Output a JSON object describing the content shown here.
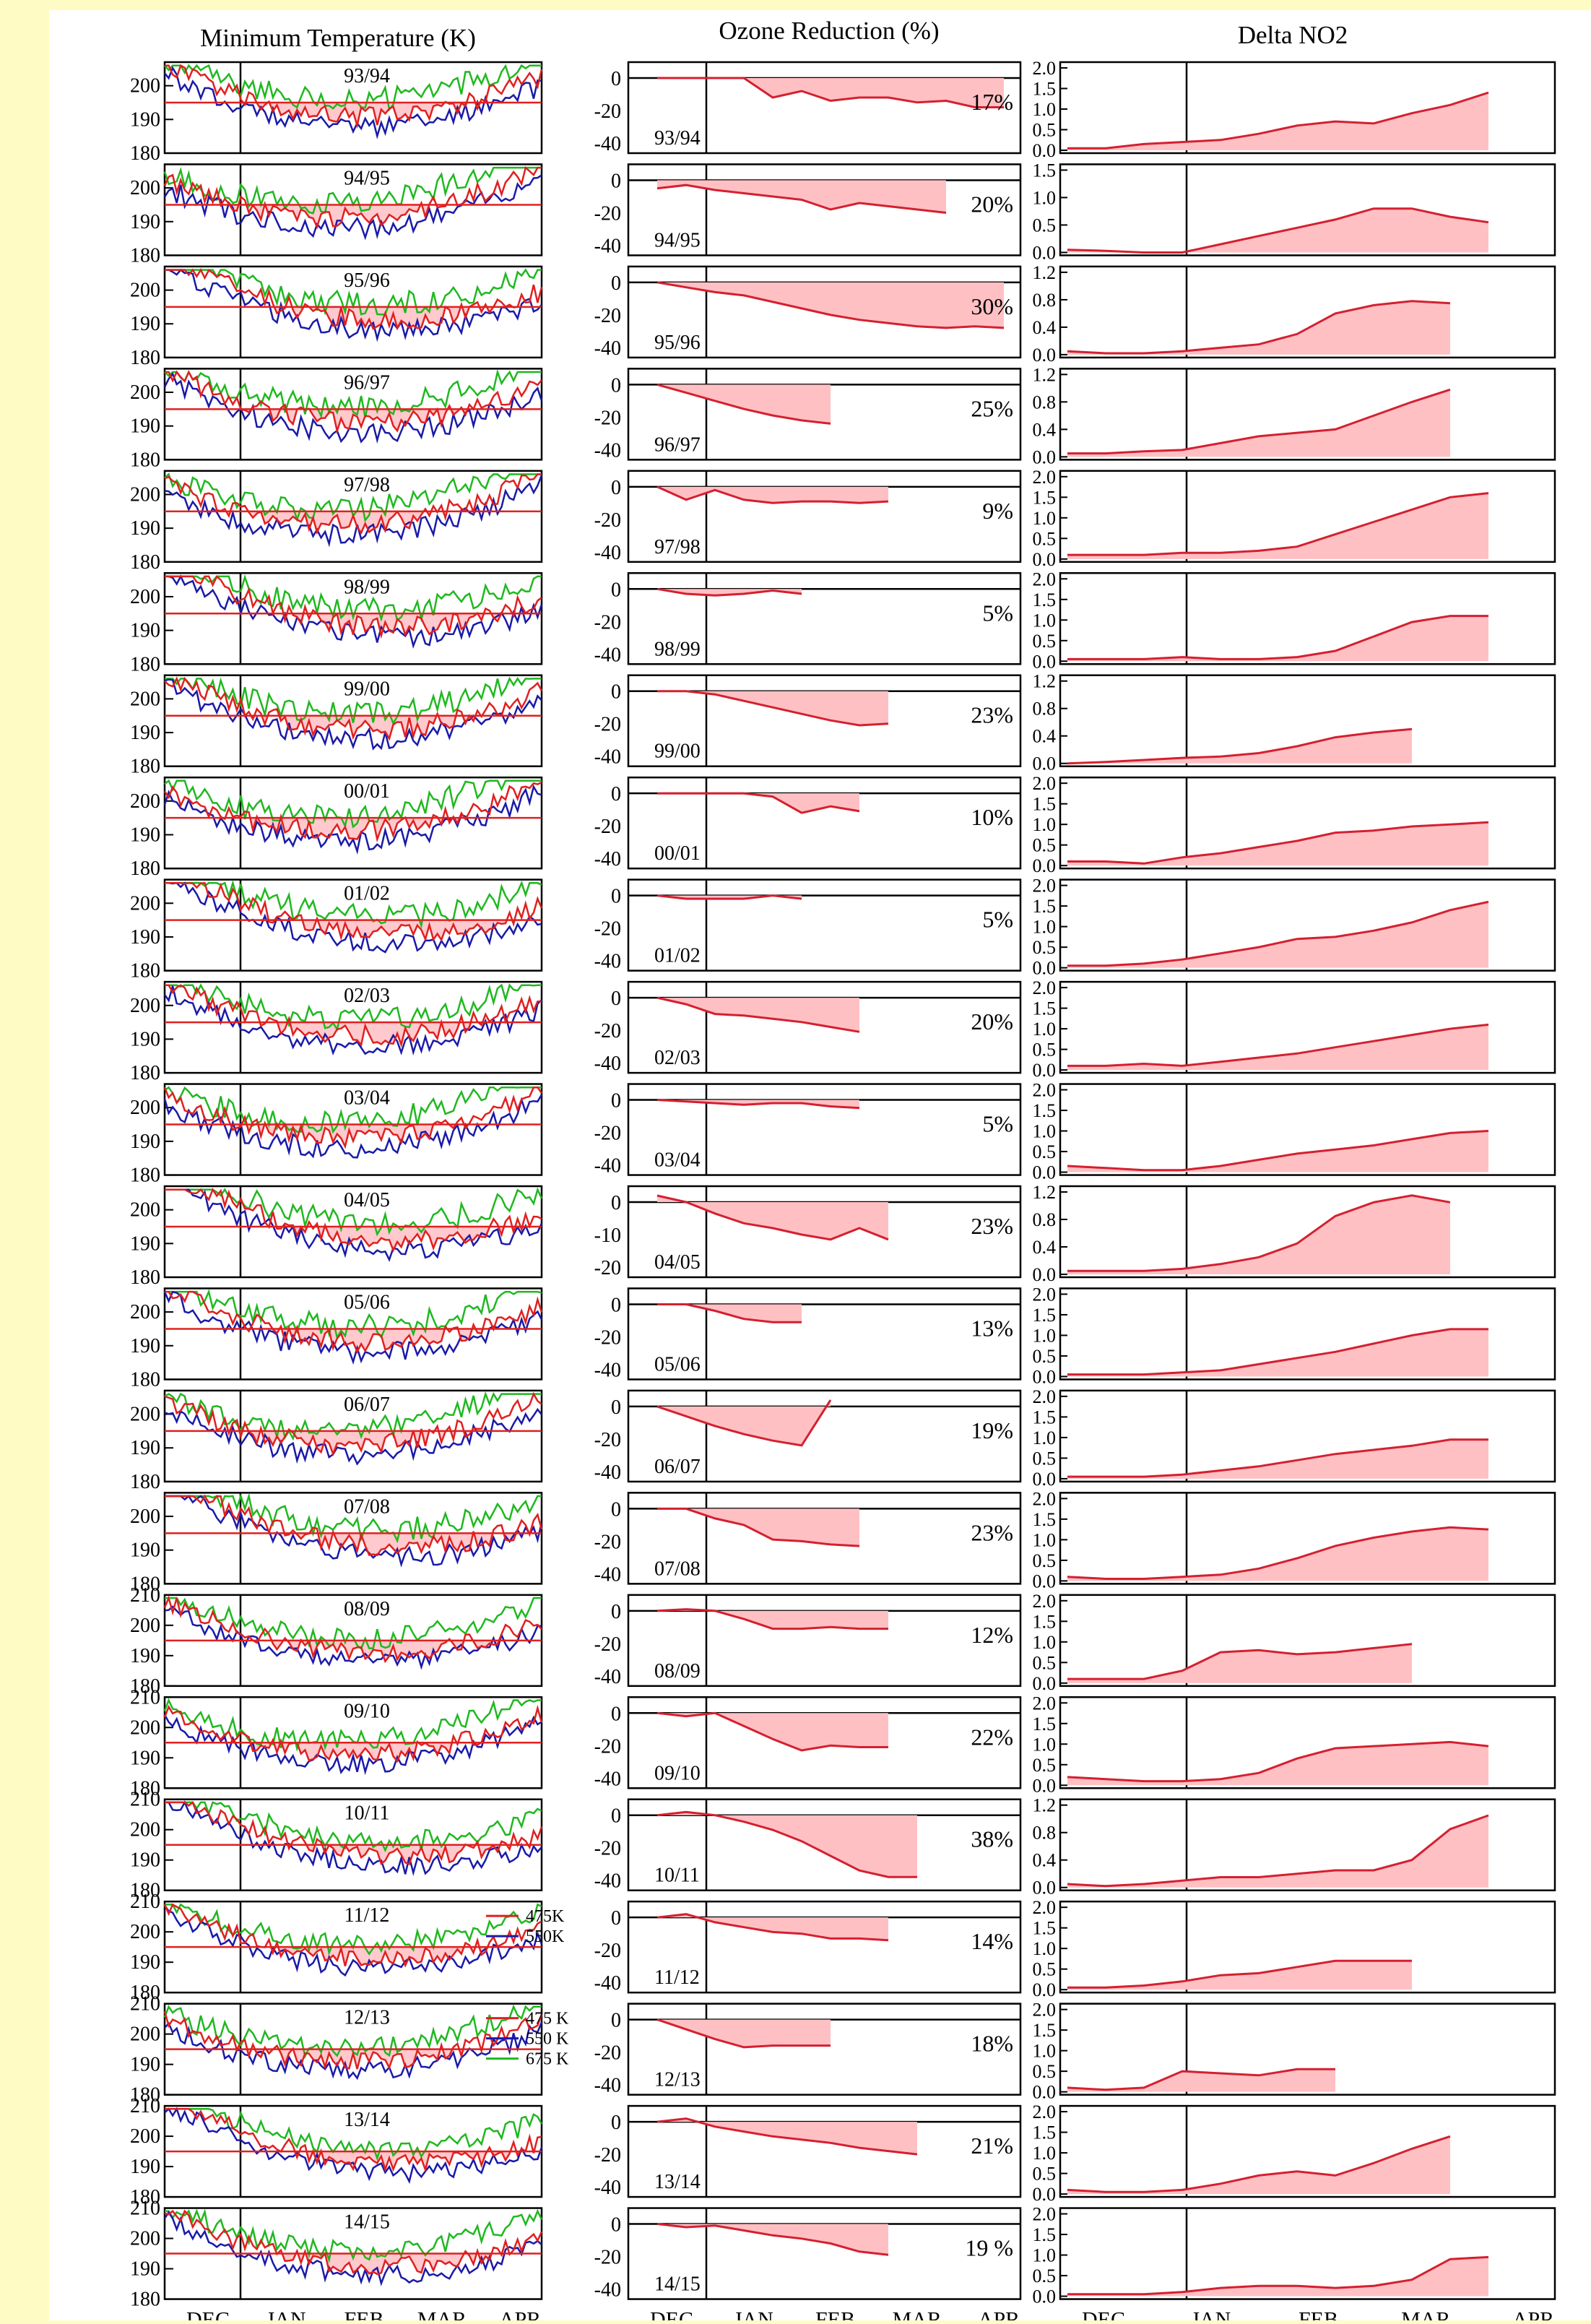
{
  "panel_titles": [
    "Minimum Temperature (K)",
    "Ozone Reduction (%)",
    "Delta NO2"
  ],
  "x_months": [
    "DEC",
    "JAN",
    "FEB",
    "MAR",
    "APR"
  ],
  "seasons": [
    "93/94",
    "94/95",
    "95/96",
    "96/97",
    "97/98",
    "98/99",
    "99/00",
    "00/01",
    "01/02",
    "02/03",
    "03/04",
    "04/05",
    "05/06",
    "06/07",
    "07/08",
    "08/09",
    "09/10",
    "10/11",
    "11/12",
    "12/13",
    "13/14",
    "14/15"
  ],
  "temperature_ticks": {
    "standard": [
      "200",
      "190",
      "180"
    ],
    "with_210": [
      "210",
      "200",
      "190",
      "180"
    ]
  },
  "legends": {
    "11/12": [
      "475K",
      "550K"
    ],
    "12/13": [
      "475 K",
      "550 K",
      "675 K"
    ]
  },
  "colors": {
    "t475": "#e02020",
    "t550": "#1a1aa8",
    "t675": "#1fb81f",
    "fill": "#ffc0c4",
    "line": "#d42030"
  },
  "chart_data": [
    {
      "type": "line",
      "title": "Minimum Temperature (K)",
      "x_range": [
        "DEC",
        "APR"
      ],
      "ylim": [
        180,
        210
      ],
      "threshold_K": 195,
      "series": [
        {
          "name": "475K"
        },
        {
          "name": "550K"
        },
        {
          "name": "675K"
        }
      ]
    },
    {
      "type": "area",
      "title": "Ozone Reduction (%)",
      "categories": [
        "93/94",
        "94/95",
        "95/96",
        "96/97",
        "97/98",
        "98/99",
        "99/00",
        "00/01",
        "01/02",
        "02/03",
        "03/04",
        "04/05",
        "05/06",
        "06/07",
        "07/08",
        "08/09",
        "09/10",
        "10/11",
        "11/12",
        "12/13",
        "13/14",
        "14/15"
      ],
      "ylim": [
        -40,
        0
      ],
      "series": [
        {
          "values": [
            17,
            20,
            30,
            25,
            9,
            5,
            23,
            10,
            5,
            20,
            5,
            23,
            13,
            19,
            23,
            12,
            22,
            38,
            14,
            18,
            21,
            19
          ]
        }
      ],
      "labels": [
        "17%",
        "20%",
        "30%",
        "25%",
        "9%",
        "5%",
        "23%",
        "10%",
        "5%",
        "20%",
        "5%",
        "23%",
        "13%",
        "19%",
        "23%",
        "12%",
        "22%",
        "38%",
        "14%",
        "18%",
        "21%",
        "19 %"
      ]
    },
    {
      "type": "area",
      "title": "Delta NO2",
      "categories": [
        "93/94",
        "94/95",
        "95/96",
        "96/97",
        "97/98",
        "98/99",
        "99/00",
        "00/01",
        "01/02",
        "02/03",
        "03/04",
        "04/05",
        "05/06",
        "06/07",
        "07/08",
        "08/09",
        "09/10",
        "10/11",
        "11/12",
        "12/13",
        "13/14",
        "14/15"
      ],
      "ylim_by_season": [
        [
          0,
          2
        ],
        [
          0,
          1.5
        ],
        [
          0,
          1.2
        ],
        [
          0,
          1.2
        ],
        [
          0,
          2
        ],
        [
          0,
          2
        ],
        [
          0,
          1.2
        ],
        [
          0,
          2
        ],
        [
          0,
          2
        ],
        [
          0,
          2
        ],
        [
          0,
          2
        ],
        [
          0,
          1.2
        ],
        [
          0,
          2
        ],
        [
          0,
          2
        ],
        [
          0,
          2
        ],
        [
          0,
          2
        ],
        [
          0,
          2
        ],
        [
          0,
          1.2
        ],
        [
          0,
          2
        ],
        [
          0,
          2
        ],
        [
          0,
          2
        ],
        [
          0,
          2
        ]
      ],
      "peak_values": [
        1.4,
        0.8,
        0.8,
        1.0,
        1.6,
        1.1,
        0.5,
        1.05,
        1.6,
        1.1,
        1.0,
        1.15,
        1.15,
        0.95,
        1.3,
        0.95,
        1.05,
        1.05,
        0.7,
        0.55,
        1.4,
        0.95
      ]
    }
  ],
  "ozone_series": [
    [
      0,
      0,
      0,
      0,
      -12,
      -8,
      -14,
      -12,
      -12,
      -15,
      -14,
      -18,
      -18
    ],
    [
      -5,
      -3,
      -6,
      -8,
      -10,
      -12,
      -18,
      -14,
      -16,
      -18,
      -20
    ],
    [
      0,
      -3,
      -6,
      -8,
      -12,
      -16,
      -20,
      -23,
      -25,
      -27,
      -28,
      -27,
      -28
    ],
    [
      0,
      -5,
      -10,
      -15,
      -19,
      -22,
      -24
    ],
    [
      0,
      -8,
      -2,
      -8,
      -10,
      -9,
      -9,
      -10,
      -9
    ],
    [
      0,
      -3,
      -4,
      -3,
      -1,
      -3
    ],
    [
      0,
      0,
      -2,
      -6,
      -10,
      -14,
      -18,
      -21,
      -20
    ],
    [
      0,
      0,
      0,
      0,
      -2,
      -12,
      -8,
      -11
    ],
    [
      0,
      -2,
      -2,
      -2,
      0,
      -2
    ],
    [
      0,
      -4,
      -10,
      -11,
      -13,
      -15,
      -18,
      -21
    ],
    [
      0,
      -1,
      -2,
      -3,
      -2,
      -2,
      -4,
      -5
    ],
    [
      4,
      0,
      -7,
      -13,
      -16,
      -20,
      -23,
      -16,
      -23
    ],
    [
      0,
      0,
      -4,
      -9,
      -11,
      -11
    ],
    [
      0,
      -6,
      -12,
      -17,
      -21,
      -24,
      4
    ],
    [
      0,
      0,
      -6,
      -10,
      -19,
      -20,
      -22,
      -23
    ],
    [
      0,
      1,
      0,
      -5,
      -11,
      -11,
      -10,
      -11,
      -11
    ],
    [
      0,
      -2,
      0,
      -8,
      -16,
      -23,
      -20,
      -21,
      -21
    ],
    [
      0,
      2,
      0,
      -4,
      -9,
      -16,
      -25,
      -34,
      -38,
      -38
    ],
    [
      0,
      2,
      -3,
      -6,
      -9,
      -10,
      -13,
      -13,
      -14
    ],
    [
      0,
      -6,
      -12,
      -17,
      -16,
      -16,
      -16
    ],
    [
      0,
      2,
      -3,
      -6,
      -9,
      -11,
      -13,
      -16,
      -18,
      -20
    ],
    [
      0,
      -2,
      -1,
      -4,
      -7,
      -9,
      -12,
      -17,
      -19
    ]
  ],
  "no2_series": [
    [
      0.05,
      0.05,
      0.15,
      0.2,
      0.25,
      0.4,
      0.6,
      0.7,
      0.65,
      0.9,
      1.1,
      1.4
    ],
    [
      0.05,
      0.03,
      0.0,
      0.0,
      0.15,
      0.3,
      0.45,
      0.6,
      0.8,
      0.8,
      0.65,
      0.55
    ],
    [
      0.05,
      0.02,
      0.02,
      0.05,
      0.1,
      0.15,
      0.3,
      0.6,
      0.72,
      0.78,
      0.75
    ],
    [
      0.05,
      0.05,
      0.08,
      0.1,
      0.2,
      0.3,
      0.35,
      0.4,
      0.6,
      0.8,
      0.98
    ],
    [
      0.1,
      0.1,
      0.1,
      0.15,
      0.15,
      0.2,
      0.3,
      0.6,
      0.9,
      1.2,
      1.5,
      1.6
    ],
    [
      0.05,
      0.05,
      0.05,
      0.1,
      0.05,
      0.05,
      0.1,
      0.25,
      0.6,
      0.95,
      1.1,
      1.1
    ],
    [
      0.0,
      0.02,
      0.05,
      0.08,
      0.1,
      0.15,
      0.25,
      0.38,
      0.45,
      0.5
    ],
    [
      0.1,
      0.1,
      0.05,
      0.2,
      0.3,
      0.45,
      0.6,
      0.8,
      0.85,
      0.95,
      1.0,
      1.05
    ],
    [
      0.05,
      0.05,
      0.1,
      0.2,
      0.35,
      0.5,
      0.7,
      0.75,
      0.9,
      1.1,
      1.4,
      1.6
    ],
    [
      0.1,
      0.1,
      0.15,
      0.1,
      0.2,
      0.3,
      0.4,
      0.55,
      0.7,
      0.85,
      1.0,
      1.1
    ],
    [
      0.15,
      0.1,
      0.05,
      0.05,
      0.15,
      0.3,
      0.45,
      0.55,
      0.65,
      0.8,
      0.95,
      1.0
    ],
    [
      0.05,
      0.05,
      0.05,
      0.08,
      0.15,
      0.25,
      0.45,
      0.85,
      1.05,
      1.15,
      1.05
    ],
    [
      0.05,
      0.05,
      0.05,
      0.1,
      0.15,
      0.3,
      0.45,
      0.6,
      0.8,
      1.0,
      1.15,
      1.15
    ],
    [
      0.05,
      0.05,
      0.05,
      0.1,
      0.2,
      0.3,
      0.45,
      0.6,
      0.7,
      0.8,
      0.95,
      0.95
    ],
    [
      0.1,
      0.05,
      0.05,
      0.1,
      0.15,
      0.3,
      0.55,
      0.85,
      1.05,
      1.2,
      1.3,
      1.25
    ],
    [
      0.1,
      0.1,
      0.1,
      0.3,
      0.75,
      0.8,
      0.7,
      0.75,
      0.85,
      0.95
    ],
    [
      0.2,
      0.15,
      0.1,
      0.1,
      0.15,
      0.3,
      0.65,
      0.9,
      0.95,
      1.0,
      1.05,
      0.95
    ],
    [
      0.05,
      0.02,
      0.05,
      0.1,
      0.15,
      0.15,
      0.2,
      0.25,
      0.25,
      0.4,
      0.85,
      1.05
    ],
    [
      0.05,
      0.05,
      0.1,
      0.2,
      0.35,
      0.4,
      0.55,
      0.7,
      0.7,
      0.7
    ],
    [
      0.1,
      0.05,
      0.1,
      0.5,
      0.45,
      0.4,
      0.55,
      0.55
    ],
    [
      0.1,
      0.05,
      0.05,
      0.1,
      0.25,
      0.45,
      0.55,
      0.45,
      0.75,
      1.1,
      1.4
    ],
    [
      0.05,
      0.05,
      0.05,
      0.1,
      0.2,
      0.25,
      0.25,
      0.2,
      0.25,
      0.4,
      0.9,
      0.95
    ]
  ]
}
